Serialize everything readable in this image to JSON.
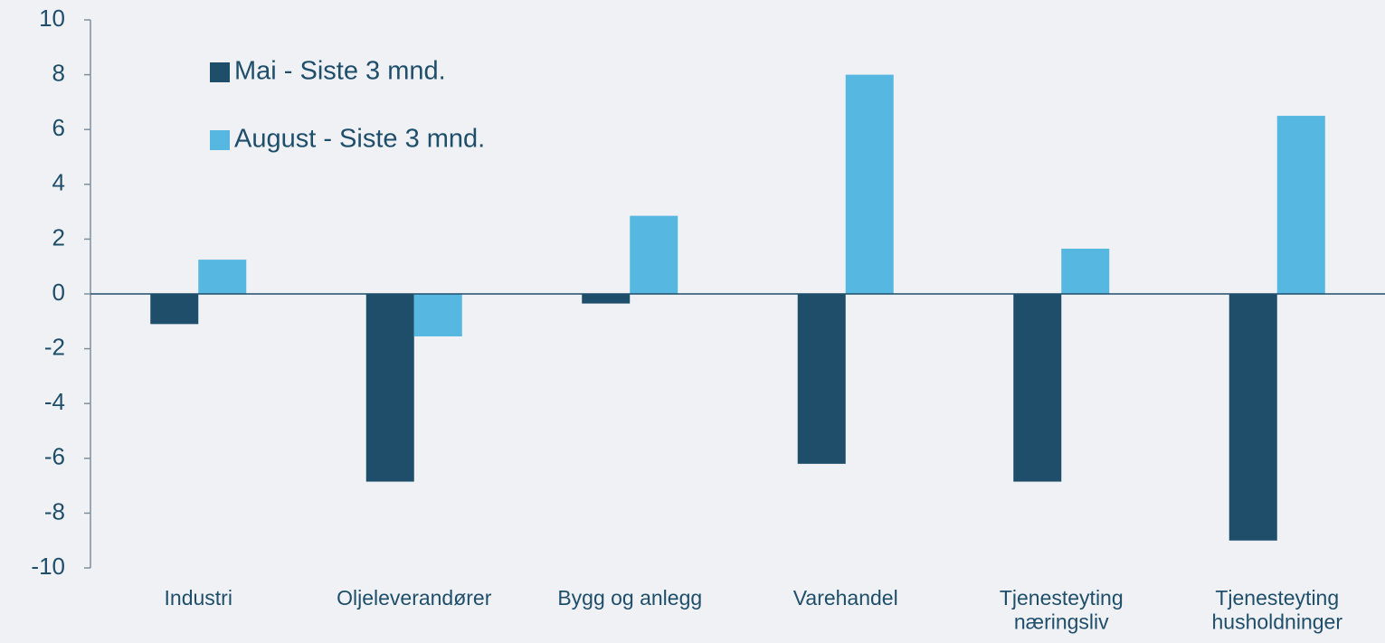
{
  "chart_data": {
    "type": "bar",
    "categories": [
      "Industri",
      "Oljeleverandører",
      "Bygg og anlegg",
      "Varehandel",
      "Tjenesteyting\nnæringsliv",
      "Tjenesteyting\nhusholdninger"
    ],
    "series": [
      {
        "name": "Mai - Siste 3 mnd.",
        "color": "#1f4e6b",
        "values": [
          -1.1,
          -6.85,
          -0.35,
          -6.2,
          -6.85,
          -9.0
        ]
      },
      {
        "name": "August - Siste 3 mnd.",
        "color": "#56b8e0",
        "values": [
          1.25,
          -1.55,
          2.85,
          8.0,
          1.65,
          6.5
        ]
      }
    ],
    "ylim": [
      -10,
      10
    ],
    "yticks": [
      -10,
      -8,
      -6,
      -4,
      -2,
      0,
      2,
      4,
      6,
      8,
      10
    ]
  }
}
